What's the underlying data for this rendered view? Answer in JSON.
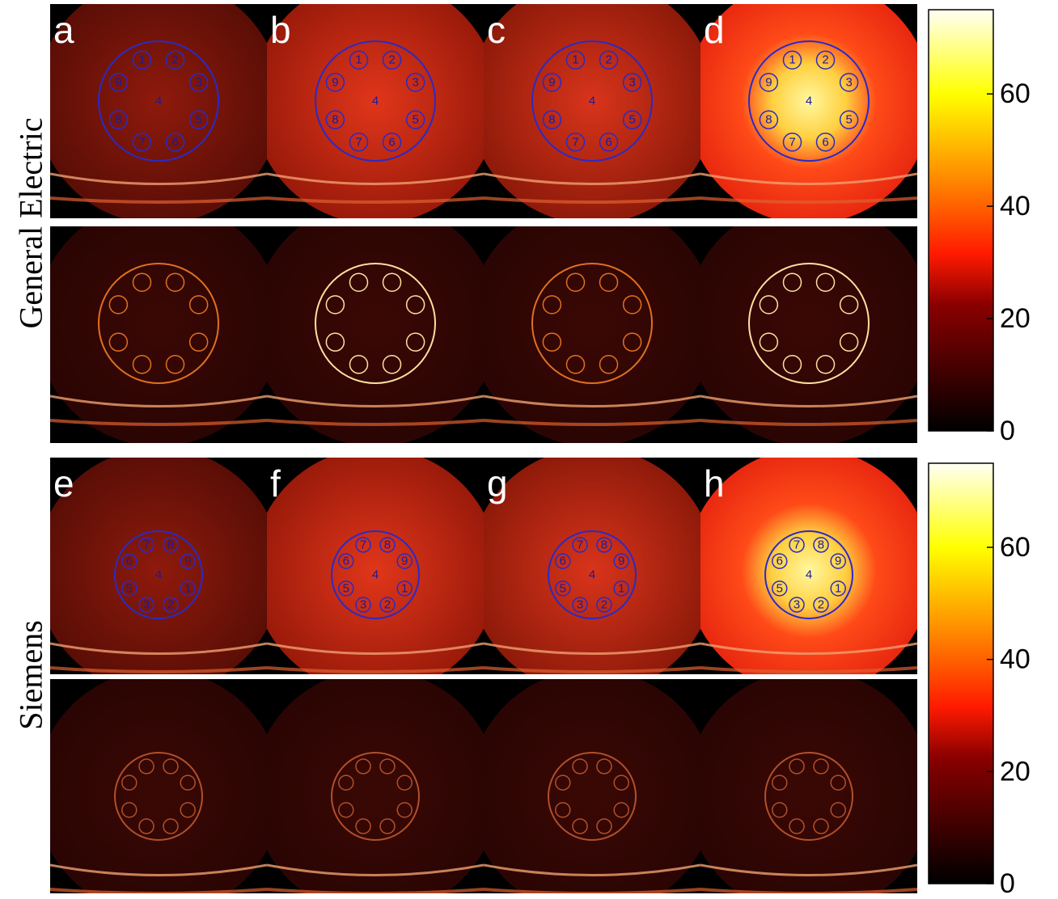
{
  "row_labels": [
    "General Electric",
    "Siemens"
  ],
  "panels": [
    "a",
    "b",
    "c",
    "d",
    "e",
    "f",
    "g",
    "h"
  ],
  "roi_labels": [
    "1",
    "2",
    "3",
    "4",
    "5",
    "6",
    "7",
    "8",
    "9"
  ],
  "colorbars": [
    {
      "lim": [
        0,
        75
      ],
      "ticks": [
        0,
        20,
        40,
        60
      ]
    },
    {
      "lim": [
        0,
        75
      ],
      "ticks": [
        0,
        20,
        40,
        60
      ]
    }
  ]
}
